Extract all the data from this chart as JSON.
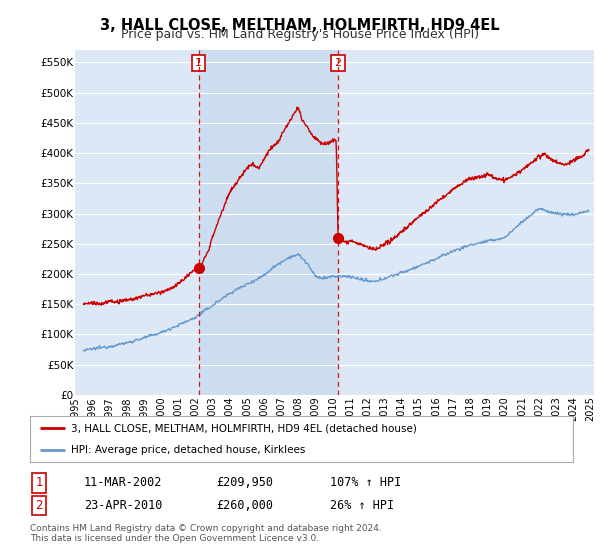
{
  "title": "3, HALL CLOSE, MELTHAM, HOLMFIRTH, HD9 4EL",
  "subtitle": "Price paid vs. HM Land Registry's House Price Index (HPI)",
  "ylim": [
    0,
    570000
  ],
  "yticks": [
    0,
    50000,
    100000,
    150000,
    200000,
    250000,
    300000,
    350000,
    400000,
    450000,
    500000,
    550000
  ],
  "ytick_labels": [
    "£0",
    "£50K",
    "£100K",
    "£150K",
    "£200K",
    "£250K",
    "£300K",
    "£350K",
    "£400K",
    "£450K",
    "£500K",
    "£550K"
  ],
  "fig_bg": "#ffffff",
  "plot_bg": "#dce8f5",
  "grid_color": "#ffffff",
  "shade_color": "#ccddf0",
  "sale1_x": 2002.19,
  "sale1_price": 209950,
  "sale2_x": 2010.31,
  "sale2_price": 260000,
  "legend_entry1": "3, HALL CLOSE, MELTHAM, HOLMFIRTH, HD9 4EL (detached house)",
  "legend_entry2": "HPI: Average price, detached house, Kirklees",
  "table_row1_num": "1",
  "table_row1_date": "11-MAR-2002",
  "table_row1_price": "£209,950",
  "table_row1_hpi": "107% ↑ HPI",
  "table_row2_num": "2",
  "table_row2_date": "23-APR-2010",
  "table_row2_price": "£260,000",
  "table_row2_hpi": "26% ↑ HPI",
  "footnote1": "Contains HM Land Registry data © Crown copyright and database right 2024.",
  "footnote2": "This data is licensed under the Open Government Licence v3.0.",
  "line_red": "#cc0000",
  "line_blue": "#6699cc",
  "title_fontsize": 10.5,
  "subtitle_fontsize": 9
}
